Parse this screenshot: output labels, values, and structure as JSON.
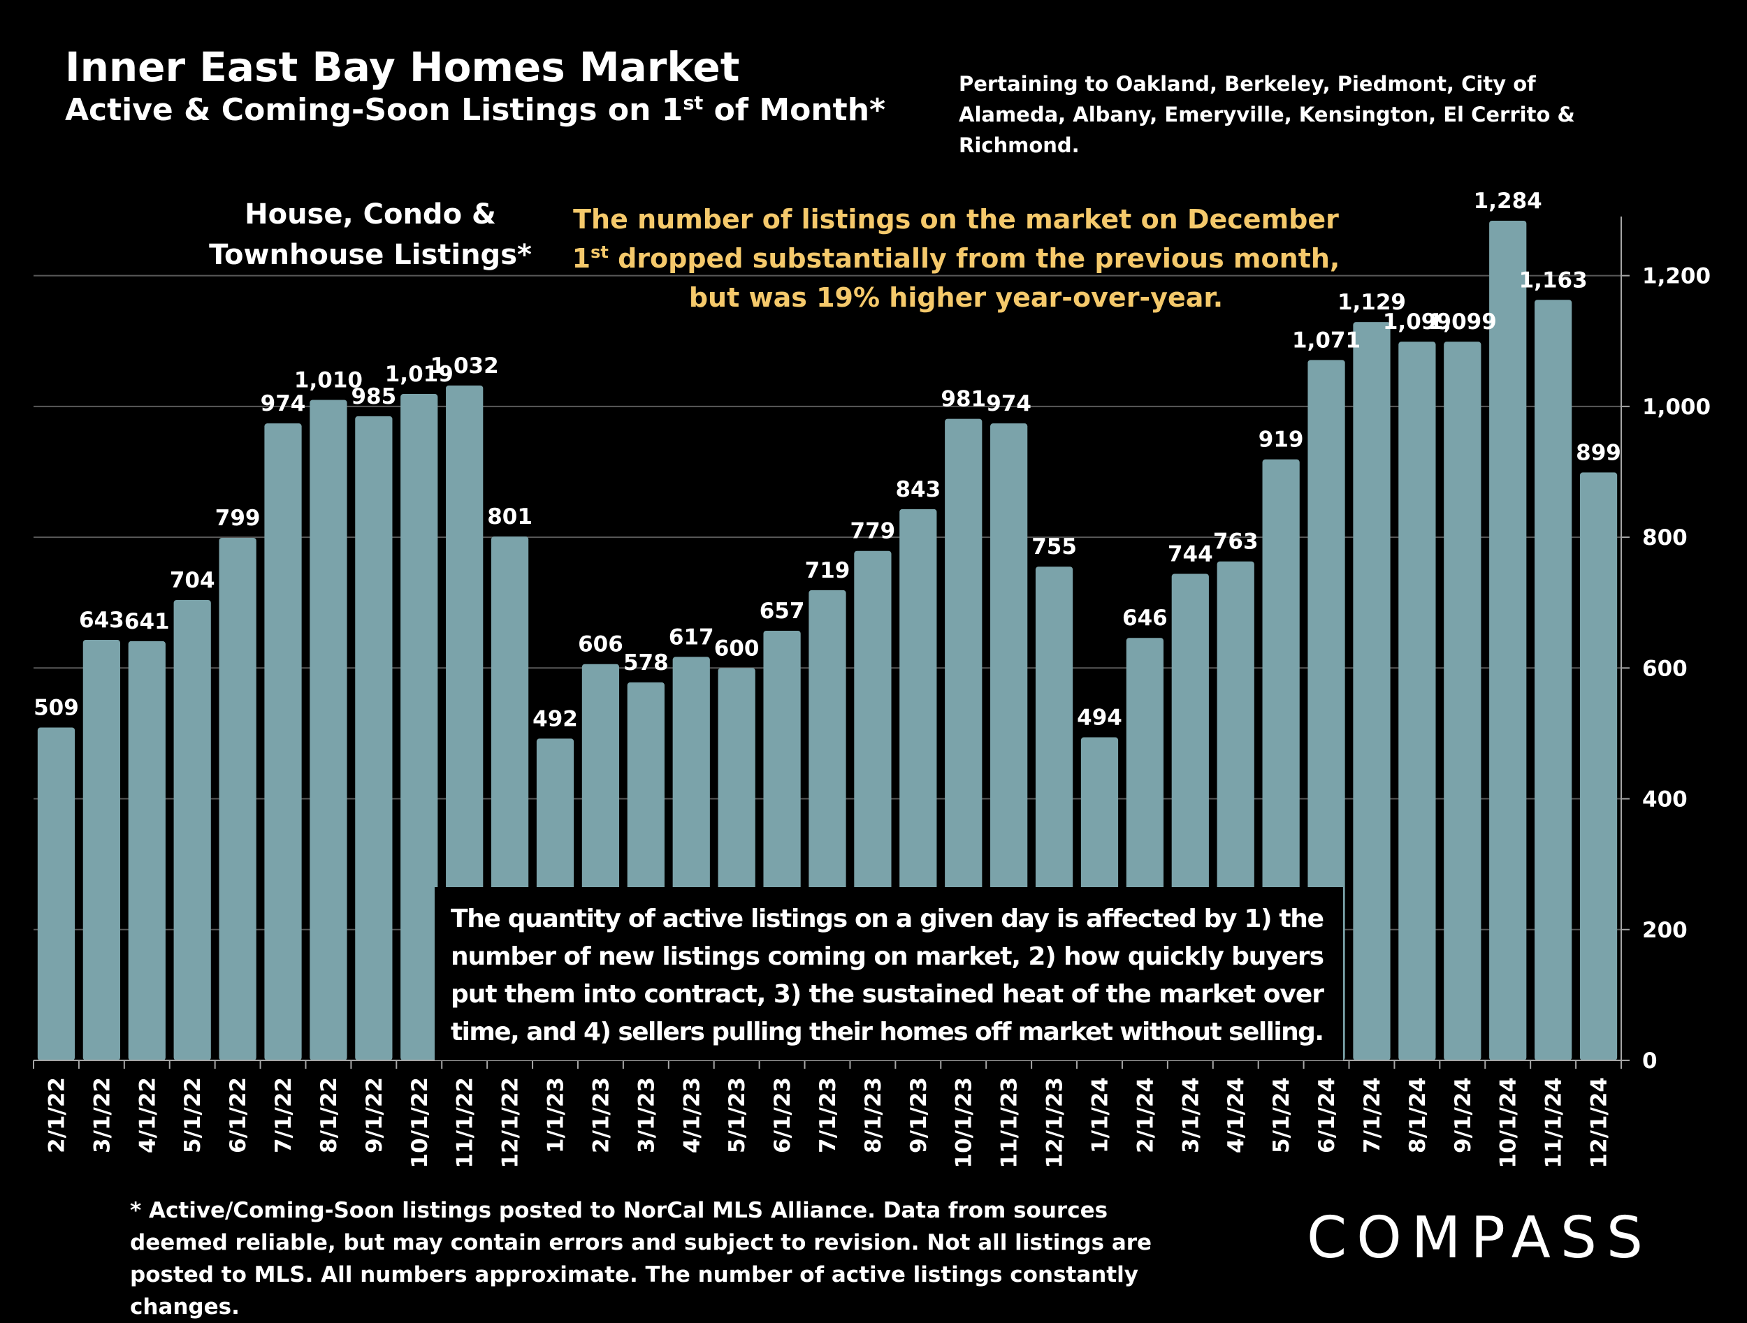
{
  "header": {
    "title": "Inner East Bay Homes Market",
    "subtitle_main": "Active & Coming-Soon Listings on 1",
    "subtitle_sup": "st",
    "subtitle_tail": " of Month*",
    "region_note": "Pertaining to Oakland, Berkeley, Piedmont, City of Alameda, Albany, Emeryville, Kensington, El Cerrito & Richmond."
  },
  "footer": {
    "footnote": "* Active/Coming-Soon listings posted to NorCal MLS Alliance.  Data from sources deemed reliable, but may contain errors and subject to revision.  Not all listings are posted to MLS.  All numbers approximate. The number of active listings constantly changes.",
    "logo": "COMPASS"
  },
  "colors": {
    "background": "#000000",
    "bar": "#7ba3aa",
    "highlight_text": "#f5c96b",
    "grid": "#595959",
    "text": "#ffffff"
  },
  "chart_data": {
    "type": "bar",
    "series_label_lines": [
      "House, Condo &",
      "Townhouse Listings*"
    ],
    "categories": [
      "2/1/22",
      "3/1/22",
      "4/1/22",
      "5/1/22",
      "6/1/22",
      "7/1/22",
      "8/1/22",
      "9/1/22",
      "10/1/22",
      "11/1/22",
      "12/1/22",
      "1/1/23",
      "2/1/23",
      "3/1/23",
      "4/1/23",
      "5/1/23",
      "6/1/23",
      "7/1/23",
      "8/1/23",
      "9/1/23",
      "10/1/23",
      "11/1/23",
      "12/1/23",
      "1/1/24",
      "2/1/24",
      "3/1/24",
      "4/1/24",
      "5/1/24",
      "6/1/24",
      "7/1/24",
      "8/1/24",
      "9/1/24",
      "10/1/24",
      "11/1/24",
      "12/1/24"
    ],
    "values": [
      509,
      643,
      641,
      704,
      799,
      974,
      1010,
      985,
      1019,
      1032,
      801,
      492,
      606,
      578,
      617,
      600,
      657,
      719,
      779,
      843,
      981,
      974,
      755,
      494,
      646,
      744,
      763,
      919,
      1071,
      1129,
      1099,
      1099,
      1284,
      1163,
      899
    ],
    "value_labels": [
      "509",
      "643",
      "641",
      "704",
      "799",
      "974",
      "1,010",
      "985",
      "1,019",
      "1,032",
      "801",
      "492",
      "606",
      "578",
      "617",
      "600",
      "657",
      "719",
      "779",
      "843",
      "981",
      "974",
      "755",
      "494",
      "646",
      "744",
      "763",
      "919",
      "1,071",
      "1,129",
      "1,099",
      "1,099",
      "1,284",
      "1,163",
      "899"
    ],
    "ylim": [
      0,
      1300
    ],
    "yticks": [
      0,
      200,
      400,
      600,
      800,
      1000,
      1200
    ],
    "ytick_labels": [
      "0",
      "200",
      "400",
      "600",
      "800",
      "1,000",
      "1,200"
    ],
    "y_axis_side": "right",
    "grid": true,
    "annotations": {
      "highlight_lines": [
        [
          "The number of listings on the market on December"
        ],
        [
          "1",
          "st",
          " dropped substantially from the previous month,"
        ],
        [
          "but was 19% higher year-over-year."
        ]
      ],
      "explanation_lines": [
        "The quantity of active listings on a given day is affected by 1) the",
        "number of new listings coming on market, 2) how quickly buyers",
        "put them into contract, 3) the sustained heat of the market over",
        "time, and 4) sellers pulling their homes off market without selling."
      ]
    }
  }
}
